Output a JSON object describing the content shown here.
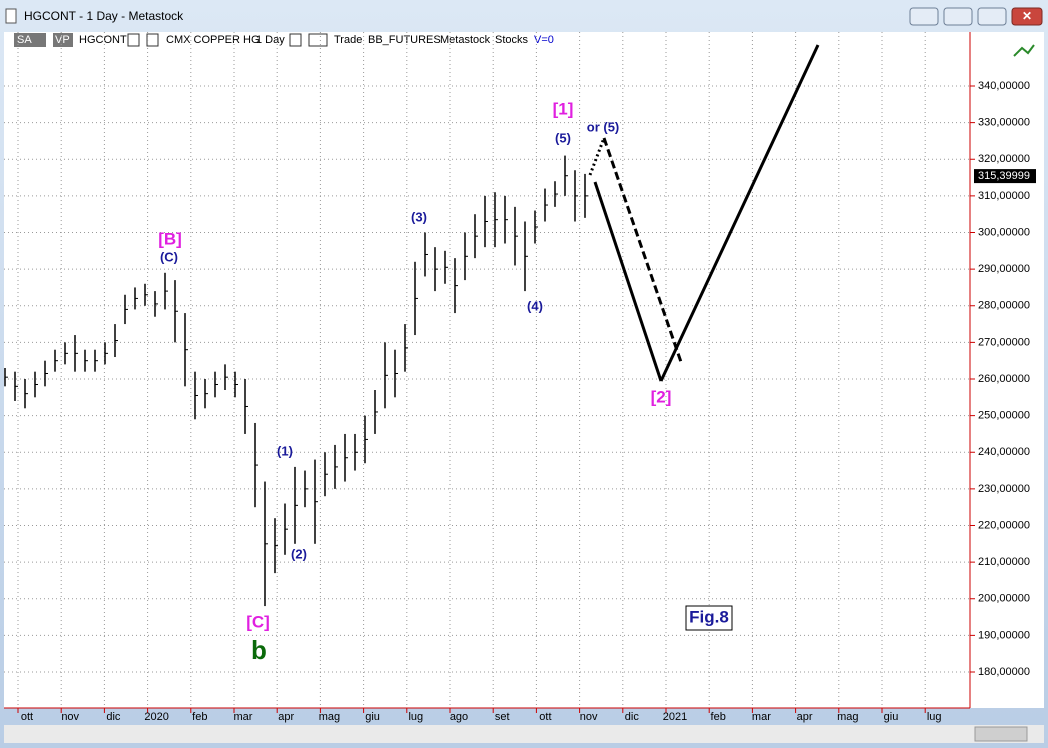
{
  "window": {
    "title": "HGCONT - 1 Day - Metastock"
  },
  "toolbar": {
    "sa": "SA",
    "vp": "VP",
    "symbol": "HGCONT",
    "name": "CMX COPPER HG",
    "period": "1 Day",
    "mode": "Trade",
    "source": "BB_FUTURES",
    "app": "Metastock",
    "kind": "Stocks",
    "volume": "V=0"
  },
  "chart_data": {
    "type": "bar",
    "months": [
      "ott",
      "nov",
      "dic",
      "2020",
      "feb",
      "mar",
      "apr",
      "mag",
      "giu",
      "lug",
      "ago",
      "set",
      "ott",
      "nov",
      "dic",
      "2021",
      "feb",
      "mar",
      "apr",
      "mag",
      "giu",
      "lug"
    ],
    "high": [
      263,
      262,
      260,
      262,
      265,
      268,
      270,
      272,
      268,
      268,
      270,
      275,
      283,
      285,
      286,
      284,
      289,
      287,
      278,
      262,
      260,
      262,
      264,
      262,
      260,
      248,
      232,
      222,
      226,
      236,
      235,
      238,
      240,
      242,
      245,
      245,
      250,
      257,
      270,
      268,
      275,
      292,
      300,
      296,
      295,
      293,
      300,
      305,
      310,
      311,
      310,
      307,
      303,
      306,
      312,
      314,
      321,
      317,
      316
    ],
    "low": [
      258,
      254,
      252,
      255,
      258,
      262,
      264,
      262,
      262,
      262,
      264,
      266,
      275,
      279,
      280,
      277,
      279,
      270,
      258,
      249,
      252,
      255,
      257,
      255,
      245,
      225,
      198,
      207,
      212,
      215,
      225,
      215,
      228,
      230,
      232,
      235,
      237,
      245,
      252,
      255,
      262,
      272,
      288,
      284,
      286,
      278,
      287,
      293,
      296,
      296,
      297,
      291,
      284,
      297,
      303,
      307,
      310,
      303,
      304
    ],
    "ylim": [
      175,
      350
    ],
    "yticks": [
      {
        "value": 180,
        "label": "180,00000"
      },
      {
        "value": 190,
        "label": "190,00000"
      },
      {
        "value": 200,
        "label": "200,00000"
      },
      {
        "value": 210,
        "label": "210,00000"
      },
      {
        "value": 220,
        "label": "220,00000"
      },
      {
        "value": 230,
        "label": "230,00000"
      },
      {
        "value": 240,
        "label": "240,00000"
      },
      {
        "value": 250,
        "label": "250,00000"
      },
      {
        "value": 260,
        "label": "260,00000"
      },
      {
        "value": 270,
        "label": "270,00000"
      },
      {
        "value": 280,
        "label": "280,00000"
      },
      {
        "value": 290,
        "label": "290,00000"
      },
      {
        "value": 300,
        "label": "300,00000"
      },
      {
        "value": 310,
        "label": "310,00000"
      },
      {
        "value": 320,
        "label": "320,00000"
      },
      {
        "value": 330,
        "label": "330,00000"
      },
      {
        "value": 340,
        "label": "340,00000"
      }
    ],
    "last": {
      "value": 315.39999,
      "label": "315,39999"
    },
    "color": "#000000",
    "grid": true,
    "annotations": [
      "[1]",
      "(5)",
      "or (5)",
      "(3)",
      "(4)",
      "[B]",
      "(C)",
      "(1)",
      "(2)",
      "[C]",
      "b",
      "[2]",
      "Fig.8"
    ]
  }
}
